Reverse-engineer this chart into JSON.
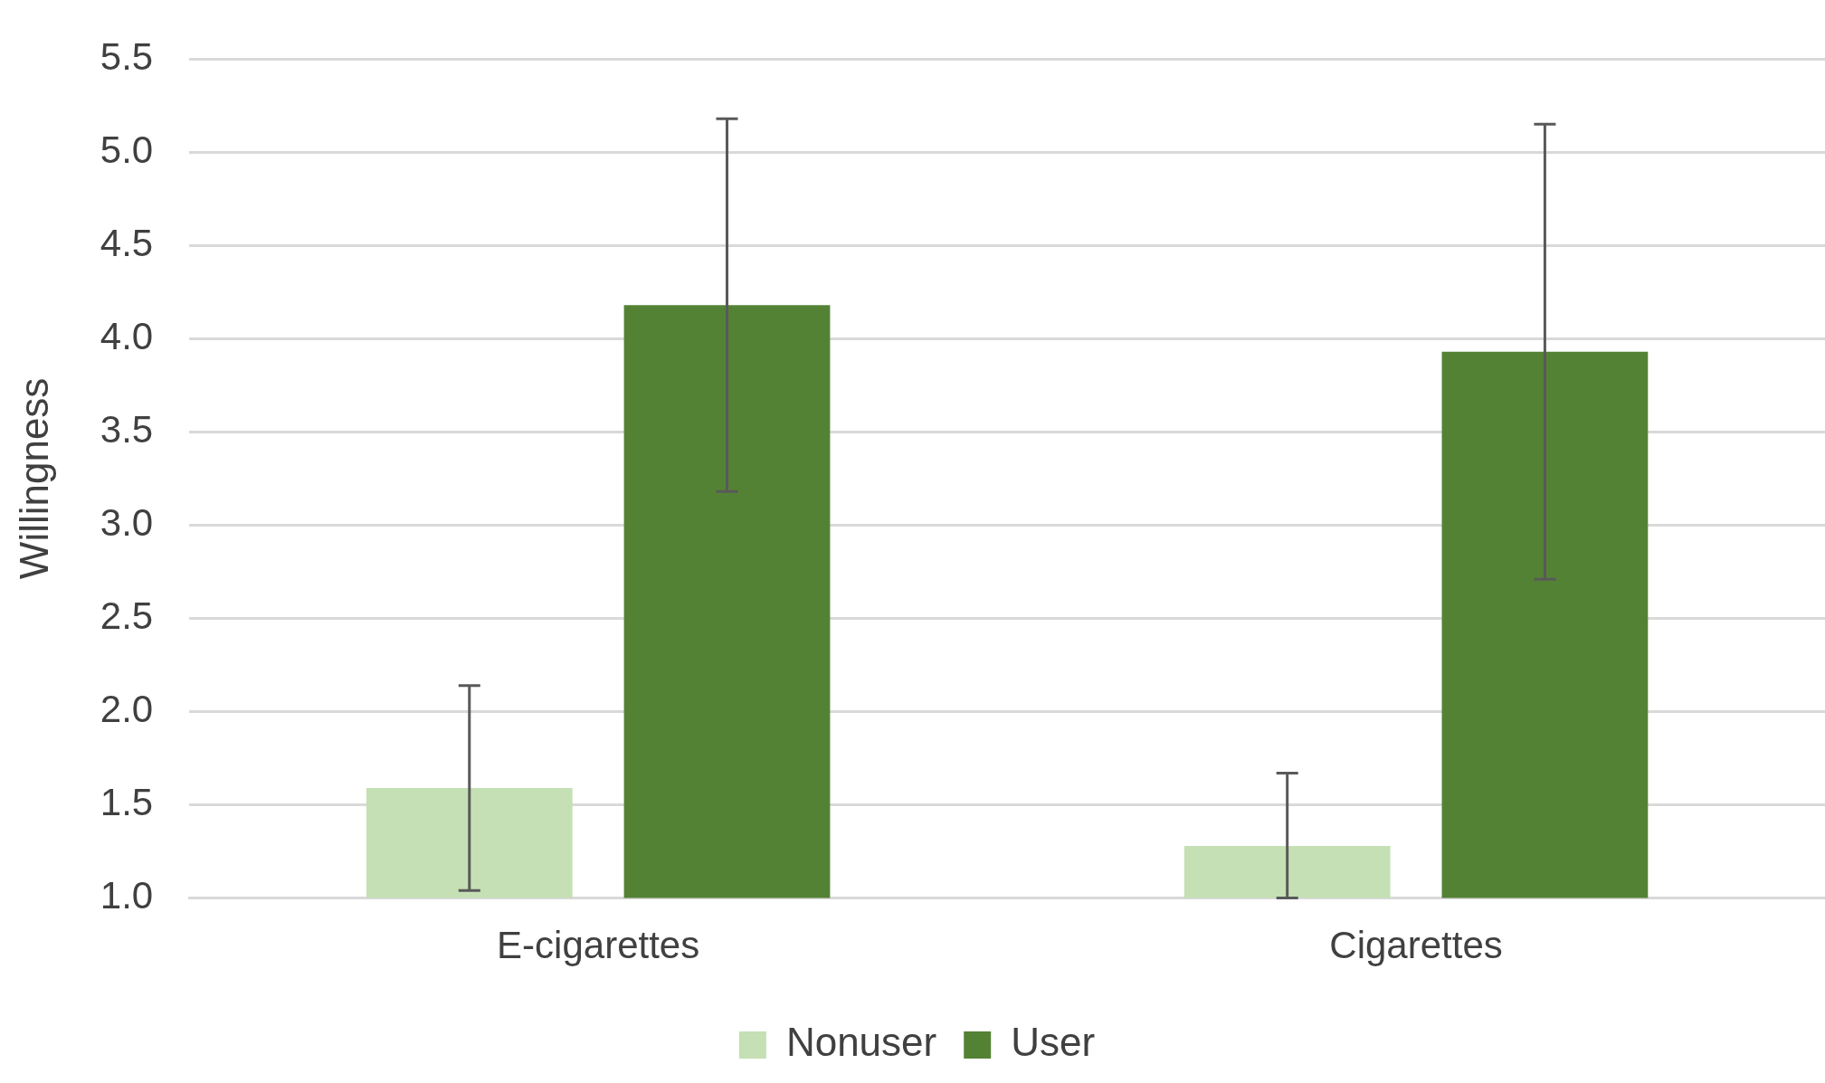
{
  "chart_data": {
    "type": "bar",
    "ylabel": "Willingness",
    "categories": [
      "E-cigarettes",
      "Cigarettes"
    ],
    "series": [
      {
        "name": "Nonuser",
        "color": "#c5e0b4",
        "values": [
          1.59,
          1.28
        ],
        "errors": [
          0.55,
          [
            1.0,
            1.67
          ]
        ]
      },
      {
        "name": "User",
        "color": "#548235",
        "values": [
          4.18,
          3.93
        ],
        "errors": [
          1.0,
          1.22
        ]
      }
    ],
    "ylim": [
      1.0,
      5.5
    ],
    "yticks": [
      {
        "value": 1,
        "label": "1.0"
      },
      {
        "value": 1.5,
        "label": "1.5"
      },
      {
        "value": 2,
        "label": "2.0"
      },
      {
        "value": 2.5,
        "label": "2.5"
      },
      {
        "value": 3,
        "label": "3.0"
      },
      {
        "value": 3.5,
        "label": "3.5"
      },
      {
        "value": 4,
        "label": "4.0"
      },
      {
        "value": 4.5,
        "label": "4.5"
      },
      {
        "value": 5,
        "label": "5.0"
      },
      {
        "value": 5.5,
        "label": "5.5"
      }
    ],
    "grid": "y",
    "legend": "bottom"
  }
}
